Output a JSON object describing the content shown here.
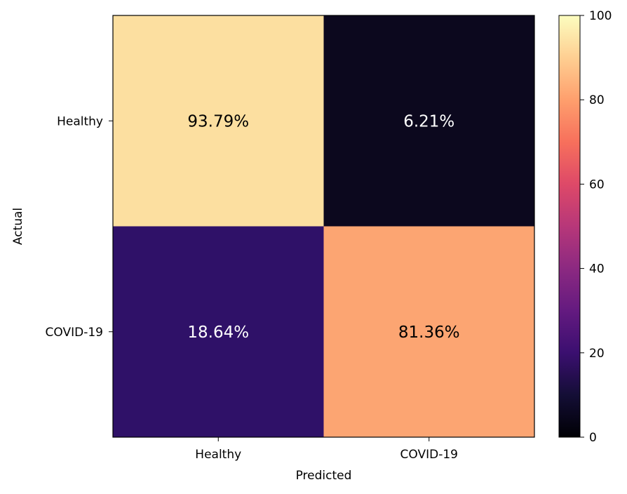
{
  "chart_data": {
    "type": "heatmap",
    "xlabel": "Predicted",
    "ylabel": "Actual",
    "x_categories": [
      "Healthy",
      "COVID-19"
    ],
    "y_categories": [
      "Healthy",
      "COVID-19"
    ],
    "values": [
      [
        93.79,
        6.21
      ],
      [
        18.64,
        81.36
      ]
    ],
    "cell_labels": [
      [
        "93.79%",
        "6.21%"
      ],
      [
        "18.64%",
        "81.36%"
      ]
    ],
    "cell_colors": [
      [
        "#fcdfa0",
        "#0c081e"
      ],
      [
        "#2f1168",
        "#fca572"
      ]
    ],
    "cell_text_colors": [
      [
        "#000000",
        "#ffffff"
      ],
      [
        "#ffffff",
        "#000000"
      ]
    ],
    "colormap": "magma",
    "colorbar": {
      "min": 0,
      "max": 100,
      "ticks": [
        "0",
        "20",
        "40",
        "60",
        "80",
        "100"
      ]
    },
    "grid": false
  }
}
